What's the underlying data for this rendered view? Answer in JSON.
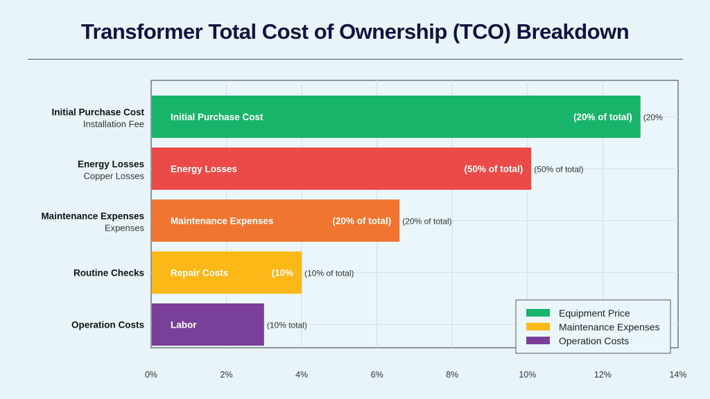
{
  "chart_data": {
    "type": "bar",
    "orientation": "horizontal",
    "title": "Transformer Total Cost of Ownership (TCO) Breakdown",
    "xlim": [
      0,
      14
    ],
    "x_ticks": [
      "0%",
      "2%",
      "4%",
      "6%",
      "8%",
      "10%",
      "12%",
      "14%"
    ],
    "grid": true,
    "legend_position": "bottom-right",
    "categories": [
      {
        "label": "Initial Purchase Cost",
        "sublabel": "Installation Fee",
        "value": 13.0,
        "color": "#18b46a",
        "bar_label": "Initial Purchase Cost",
        "inner_value_label": "(20% of total)",
        "outer_label": "(20%"
      },
      {
        "label": "Energy Losses",
        "sublabel": "Copper Losses",
        "value": 10.1,
        "color": "#ea4a48",
        "bar_label": "Energy Losses",
        "inner_value_label": "(50% of total)",
        "outer_label": "(50% of total)"
      },
      {
        "label": "Maintenance Expenses",
        "sublabel": "Expenses",
        "value": 6.6,
        "color": "#f07530",
        "bar_label": "Maintenance Expenses",
        "inner_value_label": "(20% of total)",
        "outer_label": "(20% of total)"
      },
      {
        "label": "Routine Checks",
        "sublabel": "",
        "value": 4.0,
        "color": "#fbb817",
        "bar_label": "Repair Costs",
        "inner_value_label": "(10%",
        "outer_label": "(10% of total)"
      },
      {
        "label": "Operation Costs",
        "sublabel": "",
        "value": 3.0,
        "color": "#7a3f99",
        "bar_label": "Labor",
        "inner_value_label": "",
        "outer_label": "(10% total)"
      }
    ],
    "legend": [
      {
        "name": "Equipment Price",
        "color": "#18b46a"
      },
      {
        "name": "Maintenance Expenses",
        "color": "#fbb817"
      },
      {
        "name": "Operation Costs",
        "color": "#7a3f99"
      }
    ]
  }
}
